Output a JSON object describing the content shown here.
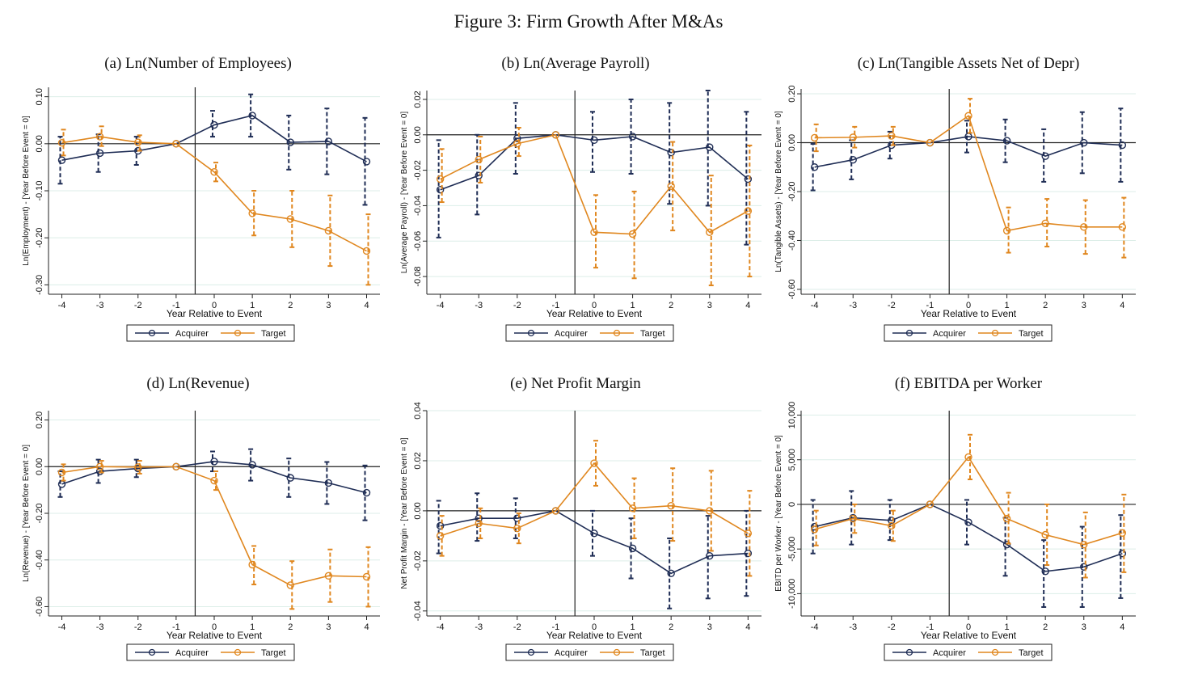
{
  "figure_title": "Figure 3: Firm Growth After M&As",
  "colors": {
    "acquirer": "#1f2d55",
    "target": "#e0871f",
    "grid": "#dceee8",
    "axis": "#222222"
  },
  "chart_data": [
    {
      "type": "line",
      "title": "(a) Ln(Number of Employees)",
      "xlabel": "Year Relative to Event",
      "ylabel": "Ln(Employment) - [Year Before Event = 0]",
      "x": [
        -4,
        -3,
        -2,
        -1,
        0,
        1,
        2,
        3,
        4
      ],
      "ylim": [
        -0.32,
        0.12
      ],
      "yticks": [
        0.1,
        0.0,
        -0.1,
        -0.2,
        -0.3
      ],
      "ytick_labels": [
        "0.10",
        "0.00",
        "-0.10",
        "-0.20",
        "-0.30"
      ],
      "event_line_x": -0.5,
      "legend": [
        "Acquirer",
        "Target"
      ],
      "series": [
        {
          "name": "Acquirer",
          "values": [
            -0.035,
            -0.02,
            -0.015,
            0.0,
            0.04,
            0.06,
            0.003,
            0.005,
            -0.038
          ],
          "ci_low": [
            -0.085,
            -0.06,
            -0.045,
            0.0,
            0.015,
            0.015,
            -0.055,
            -0.065,
            -0.13
          ],
          "ci_high": [
            0.015,
            0.02,
            0.015,
            0.0,
            0.07,
            0.105,
            0.06,
            0.075,
            0.055
          ]
        },
        {
          "name": "Target",
          "values": [
            0.002,
            0.015,
            0.003,
            0.0,
            -0.06,
            -0.148,
            -0.16,
            -0.185,
            -0.228
          ],
          "ci_low": [
            -0.025,
            -0.005,
            -0.015,
            0.0,
            -0.08,
            -0.195,
            -0.22,
            -0.26,
            -0.3
          ],
          "ci_high": [
            0.03,
            0.037,
            0.018,
            0.0,
            -0.04,
            -0.1,
            -0.1,
            -0.11,
            -0.15
          ]
        }
      ]
    },
    {
      "type": "line",
      "title": "(b) Ln(Average Payroll)",
      "xlabel": "Year Relative to Event",
      "ylabel": "Ln(Average Payroll) - [Year Before Event = 0]",
      "x": [
        -4,
        -3,
        -2,
        -1,
        0,
        1,
        2,
        3,
        4
      ],
      "ylim": [
        -0.09,
        0.025
      ],
      "yticks": [
        0.02,
        0.0,
        -0.02,
        -0.04,
        -0.06,
        -0.08
      ],
      "ytick_labels": [
        "0.02",
        "0.00",
        "-0.02",
        "-0.04",
        "-0.06",
        "-0.08"
      ],
      "event_line_x": -0.5,
      "legend": [
        "Acquirer",
        "Target"
      ],
      "series": [
        {
          "name": "Acquirer",
          "values": [
            -0.031,
            -0.023,
            -0.002,
            0.0,
            -0.003,
            -0.001,
            -0.01,
            -0.007,
            -0.025
          ],
          "ci_low": [
            -0.058,
            -0.045,
            -0.022,
            0.0,
            -0.021,
            -0.022,
            -0.039,
            -0.04,
            -0.062
          ],
          "ci_high": [
            -0.003,
            0.0,
            0.018,
            0.0,
            0.013,
            0.02,
            0.018,
            0.025,
            0.013
          ]
        },
        {
          "name": "Target",
          "values": [
            -0.025,
            -0.014,
            -0.005,
            0.0,
            -0.055,
            -0.056,
            -0.029,
            -0.055,
            -0.043
          ],
          "ci_low": [
            -0.038,
            -0.027,
            -0.012,
            0.0,
            -0.075,
            -0.081,
            -0.054,
            -0.085,
            -0.08
          ],
          "ci_high": [
            -0.008,
            -0.001,
            0.004,
            0.0,
            -0.034,
            -0.032,
            -0.004,
            -0.023,
            -0.006
          ]
        }
      ]
    },
    {
      "type": "line",
      "title": "(c) Ln(Tangible Assets Net of Depr)",
      "xlabel": "Year Relative to Event",
      "ylabel": "Ln(Tangible Assets) - [Year Before Event = 0]",
      "x": [
        -4,
        -3,
        -2,
        -1,
        0,
        1,
        2,
        3,
        4
      ],
      "ylim": [
        -0.62,
        0.22
      ],
      "yticks": [
        0.2,
        0.0,
        -0.2,
        -0.4,
        -0.6
      ],
      "ytick_labels": [
        "0.20",
        "0.00",
        "-0.20",
        "-0.40",
        "-0.60"
      ],
      "event_line_x": -0.5,
      "legend": [
        "Acquirer",
        "Target"
      ],
      "series": [
        {
          "name": "Acquirer",
          "values": [
            -0.1,
            -0.07,
            -0.01,
            0.0,
            0.025,
            0.008,
            -0.055,
            0.0,
            -0.01
          ],
          "ci_low": [
            -0.195,
            -0.15,
            -0.065,
            0.0,
            -0.04,
            -0.08,
            -0.16,
            -0.125,
            -0.16
          ],
          "ci_high": [
            -0.005,
            0.01,
            0.045,
            0.0,
            0.09,
            0.095,
            0.055,
            0.125,
            0.14
          ]
        },
        {
          "name": "Target",
          "values": [
            0.02,
            0.022,
            0.028,
            0.0,
            0.11,
            -0.36,
            -0.33,
            -0.345,
            -0.345
          ],
          "ci_low": [
            -0.035,
            -0.02,
            -0.01,
            0.0,
            0.04,
            -0.45,
            -0.425,
            -0.455,
            -0.47
          ],
          "ci_high": [
            0.075,
            0.065,
            0.065,
            0.0,
            0.18,
            -0.265,
            -0.23,
            -0.235,
            -0.225
          ]
        }
      ]
    },
    {
      "type": "line",
      "title": "(d) Ln(Revenue)",
      "xlabel": "Year Relative to Event",
      "ylabel": "Ln(Revenue) - [Year Before Event = 0]",
      "x": [
        -4,
        -3,
        -2,
        -1,
        0,
        1,
        2,
        3,
        4
      ],
      "ylim": [
        -0.64,
        0.24
      ],
      "yticks": [
        0.2,
        0.0,
        -0.2,
        -0.4,
        -0.6
      ],
      "ytick_labels": [
        "0.20",
        "0.00",
        "-0.20",
        "-0.40",
        "-0.60"
      ],
      "event_line_x": -0.5,
      "legend": [
        "Acquirer",
        "Target"
      ],
      "series": [
        {
          "name": "Acquirer",
          "values": [
            -0.075,
            -0.02,
            -0.008,
            0.0,
            0.022,
            0.008,
            -0.048,
            -0.07,
            -0.112
          ],
          "ci_low": [
            -0.13,
            -0.07,
            -0.045,
            0.0,
            -0.02,
            -0.06,
            -0.13,
            -0.16,
            -0.23
          ],
          "ci_high": [
            -0.02,
            0.03,
            0.03,
            0.0,
            0.065,
            0.075,
            0.035,
            0.02,
            0.005
          ]
        },
        {
          "name": "Target",
          "values": [
            -0.025,
            0.0,
            -0.002,
            0.0,
            -0.06,
            -0.42,
            -0.508,
            -0.468,
            -0.472
          ],
          "ci_low": [
            -0.06,
            -0.025,
            -0.03,
            0.0,
            -0.1,
            -0.505,
            -0.61,
            -0.58,
            -0.6
          ],
          "ci_high": [
            0.01,
            0.025,
            0.025,
            0.0,
            -0.02,
            -0.34,
            -0.405,
            -0.355,
            -0.345
          ]
        }
      ]
    },
    {
      "type": "line",
      "title": "(e) Net Profit Margin",
      "xlabel": "Year Relative to Event",
      "ylabel": "Net Profit Margin - [Year Before Event = 0]",
      "x": [
        -4,
        -3,
        -2,
        -1,
        0,
        1,
        2,
        3,
        4
      ],
      "ylim": [
        -0.042,
        0.04
      ],
      "yticks": [
        0.04,
        0.02,
        0.0,
        -0.02,
        -0.04
      ],
      "ytick_labels": [
        "0.04",
        "0.02",
        "0.00",
        "-0.02",
        "-0.04"
      ],
      "event_line_x": -0.5,
      "legend": [
        "Acquirer",
        "Target"
      ],
      "series": [
        {
          "name": "Acquirer",
          "values": [
            -0.006,
            -0.003,
            -0.003,
            0.0,
            -0.009,
            -0.015,
            -0.025,
            -0.018,
            -0.017
          ],
          "ci_low": [
            -0.017,
            -0.012,
            -0.011,
            0.0,
            -0.018,
            -0.027,
            -0.039,
            -0.035,
            -0.034
          ],
          "ci_high": [
            0.004,
            0.007,
            0.005,
            0.0,
            0.0,
            -0.003,
            -0.011,
            -0.002,
            0.0
          ]
        },
        {
          "name": "Target",
          "values": [
            -0.01,
            -0.005,
            -0.007,
            0.0,
            0.019,
            0.001,
            0.002,
            0.0,
            -0.009
          ],
          "ci_low": [
            -0.018,
            -0.011,
            -0.013,
            0.0,
            0.01,
            -0.011,
            -0.012,
            -0.016,
            -0.026
          ],
          "ci_high": [
            -0.002,
            0.001,
            -0.001,
            0.0,
            0.028,
            0.013,
            0.017,
            0.016,
            0.008
          ]
        }
      ]
    },
    {
      "type": "line",
      "title": "(f) EBITDA per Worker",
      "xlabel": "Year Relative to Event",
      "ylabel": "EBITD per Worker - [Year Before Event = 0]",
      "x": [
        -4,
        -3,
        -2,
        -1,
        0,
        1,
        2,
        3,
        4
      ],
      "ylim": [
        -12500,
        10500
      ],
      "yticks": [
        10000,
        5000,
        0,
        -5000,
        -10000
      ],
      "ytick_labels": [
        "10,000",
        "5,000",
        "0",
        "-5,000",
        "-10,000"
      ],
      "event_line_x": -0.5,
      "legend": [
        "Acquirer",
        "Target"
      ],
      "series": [
        {
          "name": "Acquirer",
          "values": [
            -2500,
            -1500,
            -1800,
            0,
            -2000,
            -4500,
            -7500,
            -7000,
            -5500
          ],
          "ci_low": [
            -5500,
            -4500,
            -4000,
            0,
            -4500,
            -8000,
            -11500,
            -11500,
            -10500
          ],
          "ci_high": [
            500,
            1500,
            500,
            0,
            500,
            -1500,
            -4000,
            -2500,
            -1200
          ]
        },
        {
          "name": "Target",
          "values": [
            -2800,
            -1600,
            -2400,
            0,
            5300,
            -1600,
            -3400,
            -4500,
            -3200
          ],
          "ci_low": [
            -4600,
            -3200,
            -4100,
            0,
            2800,
            -4400,
            -6800,
            -8200,
            -7600
          ],
          "ci_high": [
            -700,
            0,
            -700,
            0,
            7800,
            1300,
            0,
            -900,
            1100
          ]
        }
      ]
    }
  ]
}
